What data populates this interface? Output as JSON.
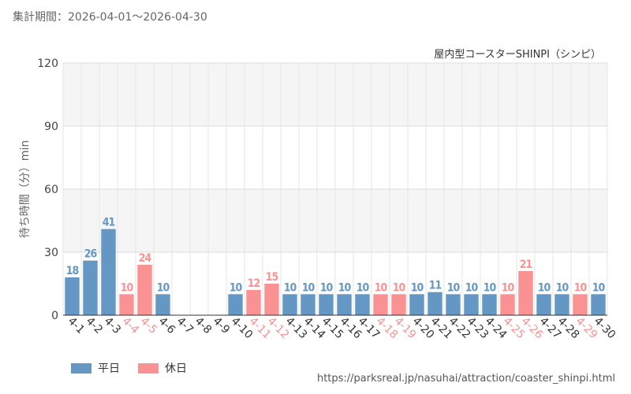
{
  "header": {
    "period": "集計期間：2026-04-01～2026-04-30"
  },
  "footer": {
    "url": "https://parksreal.jp/nasuhai/attraction/coaster_shinpi.html"
  },
  "legend": [
    {
      "label": "平日",
      "color": "#6497c3"
    },
    {
      "label": "休日",
      "color": "#fa9193"
    }
  ],
  "chart_data": {
    "type": "bar",
    "title": "屋内型コースターSHINPI（シンピ）",
    "ylabel": "待ち時間（分）min",
    "xlabel": "",
    "ylim": [
      0,
      120
    ],
    "yticks": [
      0,
      30,
      60,
      90,
      120
    ],
    "grid": true,
    "legend_position": "bottom-left",
    "colors": {
      "weekday": "#6497c3",
      "holiday": "#fa9193"
    },
    "categories": [
      "4-1",
      "4-2",
      "4-3",
      "4-4",
      "4-5",
      "4-6",
      "4-7",
      "4-8",
      "4-9",
      "4-10",
      "4-11",
      "4-12",
      "4-13",
      "4-14",
      "4-15",
      "4-16",
      "4-17",
      "4-18",
      "4-19",
      "4-20",
      "4-21",
      "4-22",
      "4-23",
      "4-24",
      "4-25",
      "4-26",
      "4-27",
      "4-28",
      "4-29",
      "4-30"
    ],
    "values": [
      18,
      26,
      41,
      10,
      24,
      10,
      null,
      null,
      null,
      10,
      12,
      15,
      10,
      10,
      10,
      10,
      10,
      10,
      10,
      10,
      11,
      10,
      10,
      10,
      10,
      21,
      10,
      10,
      10,
      10
    ],
    "day_type": [
      "weekday",
      "weekday",
      "weekday",
      "holiday",
      "holiday",
      "weekday",
      "weekday",
      "weekday",
      "weekday",
      "weekday",
      "holiday",
      "holiday",
      "weekday",
      "weekday",
      "weekday",
      "weekday",
      "weekday",
      "holiday",
      "holiday",
      "weekday",
      "weekday",
      "weekday",
      "weekday",
      "weekday",
      "holiday",
      "holiday",
      "weekday",
      "weekday",
      "holiday",
      "weekday"
    ]
  }
}
